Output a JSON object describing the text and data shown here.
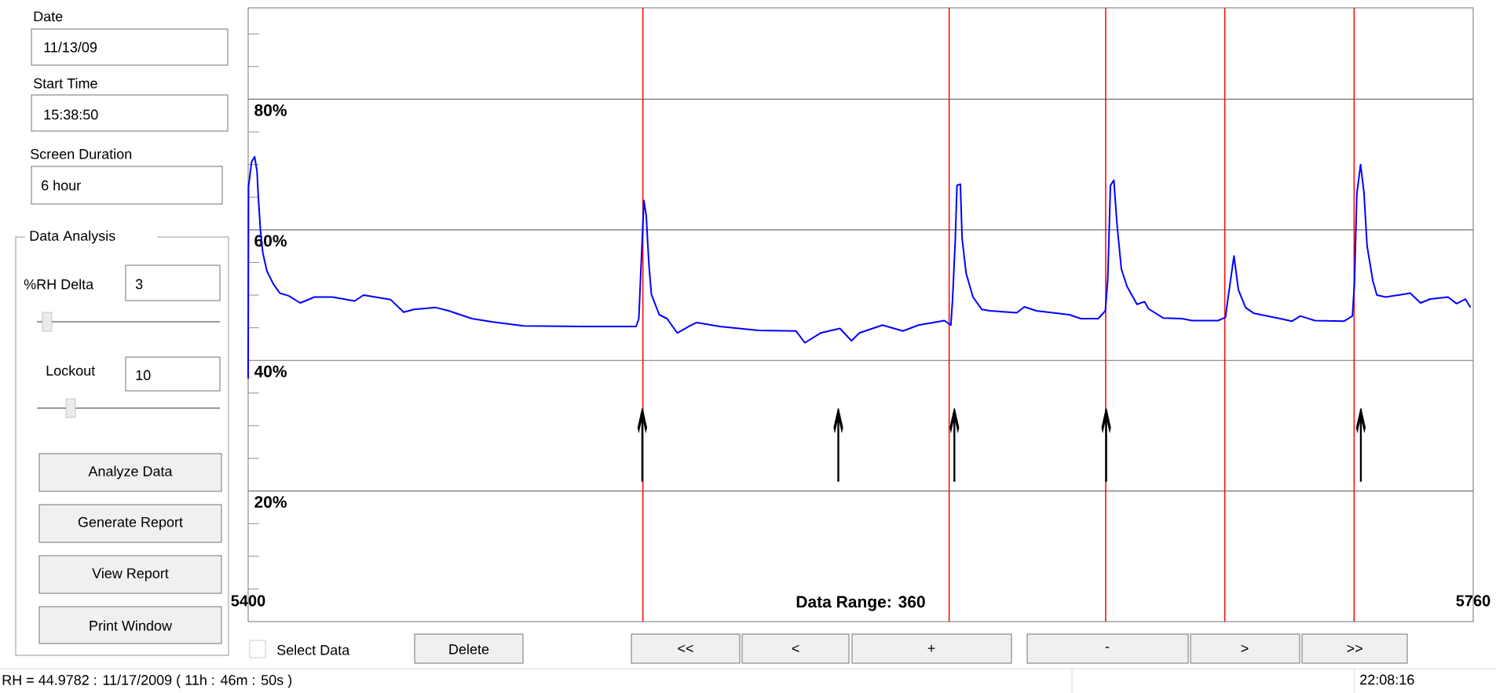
{
  "chart_data": {
    "type": "line",
    "xlim": [
      5400,
      5760
    ],
    "xticks": [
      5400,
      5760
    ],
    "ylim": [
      0,
      94
    ],
    "yticks": [
      {
        "value": 5,
        "label": null
      },
      {
        "value": 10,
        "label": null
      },
      {
        "value": 15,
        "label": null
      },
      {
        "value": 20,
        "label": "20%"
      },
      {
        "value": 25,
        "label": null
      },
      {
        "value": 30,
        "label": null
      },
      {
        "value": 35,
        "label": null
      },
      {
        "value": 40,
        "label": "40%"
      },
      {
        "value": 45,
        "label": null
      },
      {
        "value": 50,
        "label": null
      },
      {
        "value": 55,
        "label": null
      },
      {
        "value": 60,
        "label": "60%"
      },
      {
        "value": 65,
        "label": null
      },
      {
        "value": 70,
        "label": null
      },
      {
        "value": 75,
        "label": null
      },
      {
        "value": 80,
        "label": "80%"
      },
      {
        "value": 85,
        "label": null
      },
      {
        "value": 90,
        "label": null
      }
    ],
    "grid": "y",
    "series": [
      {
        "color": "#0000ff",
        "x": [
          5400,
          5400.1,
          5401,
          5401.9,
          5402.6,
          5403,
          5403.6,
          5404.3,
          5405.5,
          5407.4,
          5409.3,
          5411.9,
          5415.3,
          5419.5,
          5424.8,
          5431.3,
          5433.9,
          5441.9,
          5445.7,
          5448.7,
          5455.2,
          5458.9,
          5465.8,
          5471.9,
          5481,
          5498.4,
          5514,
          5514.8,
          5515.2,
          5516.3,
          5517,
          5517.4,
          5517.8,
          5518.5,
          5520.8,
          5523.1,
          5526.1,
          5529.5,
          5531.8,
          5538.6,
          5550,
          5561,
          5563.6,
          5568.2,
          5573.9,
          5577.3,
          5579.6,
          5586.4,
          5592.4,
          5597,
          5604.6,
          5606.5,
          5607,
          5607.8,
          5608.3,
          5609.3,
          5609.8,
          5611,
          5613,
          5615.6,
          5617.9,
          5625.9,
          5628.1,
          5631.6,
          5641.3,
          5644.7,
          5649.8,
          5651.9,
          5652.6,
          5653.4,
          5654.4,
          5655.3,
          5656.6,
          5658.3,
          5661.2,
          5663.4,
          5664.6,
          5668.9,
          5674.4,
          5677.4,
          5685,
          5687.2,
          5687.8,
          5689.7,
          5691,
          5693.1,
          5695.6,
          5703.3,
          5706.7,
          5709.2,
          5713.5,
          5722,
          5724.5,
          5725.1,
          5725.8,
          5726.9,
          5727.9,
          5728.8,
          5730.5,
          5731.7,
          5734.3,
          5741.5,
          5744.5,
          5747.4,
          5752.6,
          5755.1,
          5757.7,
          5759.2
        ],
        "values": [
          37.2,
          66.6,
          70.4,
          71.2,
          69.0,
          64.9,
          60.0,
          56.5,
          53.7,
          51.7,
          50.3,
          49.9,
          48.8,
          49.7,
          49.7,
          49.1,
          50.0,
          49.3,
          47.4,
          47.8,
          48.1,
          47.6,
          46.4,
          45.9,
          45.3,
          45.2,
          45.2,
          46.4,
          51.3,
          64.5,
          62.1,
          58.1,
          54.5,
          50.1,
          47.0,
          46.4,
          44.2,
          45.2,
          45.8,
          45.2,
          44.6,
          44.5,
          42.7,
          44.2,
          44.9,
          43.0,
          44.2,
          45.4,
          44.5,
          45.4,
          46.1,
          45.4,
          49.3,
          58.5,
          66.8,
          67.0,
          58.7,
          53.3,
          49.7,
          47.8,
          47.6,
          47.3,
          48.2,
          47.6,
          47.0,
          46.4,
          46.4,
          47.6,
          52.4,
          66.8,
          67.6,
          61.0,
          54.0,
          51.3,
          48.6,
          49.0,
          47.9,
          46.5,
          46.4,
          46.1,
          46.1,
          46.6,
          49.0,
          56.0,
          50.8,
          48.1,
          47.2,
          46.4,
          46.0,
          46.8,
          46.1,
          46.0,
          46.8,
          51.7,
          65.5,
          70.0,
          65.7,
          57.6,
          52.2,
          50.0,
          49.7,
          50.3,
          48.8,
          49.4,
          49.7,
          48.7,
          49.4,
          48.1
        ]
      }
    ],
    "ref_lines": [
      {
        "axis": "x",
        "value": 5516,
        "color": "#ff0000"
      },
      {
        "axis": "x",
        "value": 5606,
        "color": "#ff0000"
      },
      {
        "axis": "x",
        "value": 5652,
        "color": "#ff0000"
      },
      {
        "axis": "x",
        "value": 5687,
        "color": "#ff0000"
      },
      {
        "axis": "x",
        "value": 5725,
        "color": "#ff0000"
      }
    ],
    "annotations": [
      "Date",
      "11/13/09",
      "Start Time",
      "15:38:50",
      "Screen Duration",
      "6 hour",
      "Data Analysis",
      "%RH Delta",
      "3",
      "Lockout",
      "10",
      "Analyze Data",
      "Generate Report",
      "View Report",
      "Print Window",
      "Select Data",
      "Delete",
      "<<",
      "<",
      "+",
      "-",
      ">",
      ">>",
      "RH = 44.9782 : 11/17/2009 ( 11h : 46m : 50s )",
      "22:08:16",
      "↑",
      "↑",
      "↑",
      "↑",
      "↑"
    ],
    "xlabel": "Data Range: 360"
  }
}
